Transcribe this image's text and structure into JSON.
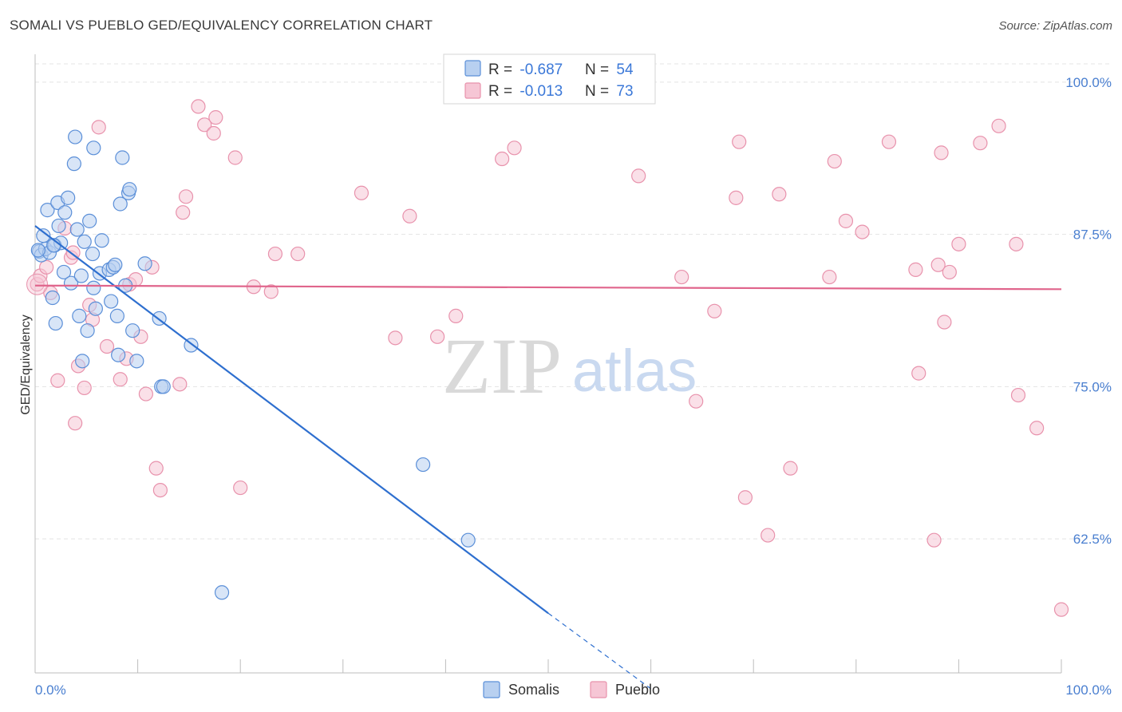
{
  "title": "SOMALI VS PUEBLO GED/EQUIVALENCY CORRELATION CHART",
  "source": "Source: ZipAtlas.com",
  "watermark": {
    "zip": "ZIP",
    "atlas": "atlas"
  },
  "colors": {
    "somali": "#5b8fd8",
    "somali_fill": "#b8d0f0",
    "somali_line": "#2e6fcf",
    "pueblo": "#e892ac",
    "pueblo_fill": "#f6c6d5",
    "pueblo_line": "#e0658c"
  },
  "legend": {
    "rows": [
      {
        "r_label": "R = ",
        "r_value": "-0.687",
        "n_label": "N = ",
        "n_value": "54"
      },
      {
        "r_label": "R = ",
        "r_value": "-0.013",
        "n_label": "N = ",
        "n_value": "73"
      }
    ],
    "bottom": [
      "Somalis",
      "Pueblo"
    ]
  },
  "chart_data": {
    "type": "scatter",
    "title": "SOMALI VS PUEBLO GED/EQUIVALENCY CORRELATION CHART",
    "xlabel": "",
    "ylabel": "GED/Equivalency",
    "xlim": [
      0,
      100
    ],
    "ylim": [
      51.5,
      101.5
    ],
    "x_tick_labels": [
      "0.0%",
      "100.0%"
    ],
    "y_ticks": [
      100,
      87.5,
      75,
      62.5
    ],
    "y_tick_labels": [
      "100.0%",
      "87.5%",
      "75.0%",
      "62.5%"
    ],
    "grid": "horizontal dashed",
    "legend_position": "top-center",
    "series": [
      {
        "name": "Somalis",
        "points": [
          [
            0.4,
            86.1
          ],
          [
            0.6,
            85.8
          ],
          [
            0.8,
            87.4
          ],
          [
            1.0,
            86.3
          ],
          [
            1.2,
            89.5
          ],
          [
            1.4,
            86.0
          ],
          [
            1.7,
            82.3
          ],
          [
            1.9,
            86.6
          ],
          [
            2.0,
            80.2
          ],
          [
            2.2,
            90.1
          ],
          [
            2.3,
            88.2
          ],
          [
            2.5,
            86.8
          ],
          [
            2.8,
            84.4
          ],
          [
            2.9,
            89.3
          ],
          [
            3.2,
            90.5
          ],
          [
            3.5,
            83.5
          ],
          [
            3.8,
            93.3
          ],
          [
            3.9,
            95.5
          ],
          [
            4.1,
            87.9
          ],
          [
            4.3,
            80.8
          ],
          [
            4.5,
            84.1
          ],
          [
            4.6,
            77.1
          ],
          [
            4.8,
            86.9
          ],
          [
            5.1,
            79.6
          ],
          [
            5.3,
            88.6
          ],
          [
            5.6,
            85.9
          ],
          [
            5.7,
            83.1
          ],
          [
            5.9,
            81.4
          ],
          [
            5.7,
            94.6
          ],
          [
            6.3,
            84.3
          ],
          [
            6.5,
            87.0
          ],
          [
            7.2,
            84.6
          ],
          [
            7.4,
            82.0
          ],
          [
            7.6,
            84.8
          ],
          [
            7.8,
            85.0
          ],
          [
            8.0,
            80.8
          ],
          [
            8.1,
            77.6
          ],
          [
            8.3,
            90.0
          ],
          [
            8.5,
            93.8
          ],
          [
            8.8,
            83.3
          ],
          [
            9.1,
            90.9
          ],
          [
            9.2,
            91.2
          ],
          [
            9.5,
            79.6
          ],
          [
            9.9,
            77.1
          ],
          [
            10.7,
            85.1
          ],
          [
            12.1,
            80.6
          ],
          [
            12.3,
            75.0
          ],
          [
            12.5,
            75.0
          ],
          [
            15.2,
            78.4
          ],
          [
            18.2,
            58.1
          ],
          [
            37.8,
            68.6
          ],
          [
            42.2,
            62.4
          ],
          [
            0.3,
            86.2
          ],
          [
            1.8,
            86.6
          ]
        ]
      },
      {
        "name": "Pueblo",
        "points": [
          [
            0.2,
            83.4
          ],
          [
            0.5,
            84.1
          ],
          [
            1.1,
            84.8
          ],
          [
            1.5,
            82.7
          ],
          [
            2.2,
            75.5
          ],
          [
            2.9,
            88.0
          ],
          [
            3.5,
            85.6
          ],
          [
            3.7,
            86.0
          ],
          [
            3.9,
            72.0
          ],
          [
            4.2,
            76.7
          ],
          [
            4.8,
            74.9
          ],
          [
            5.3,
            81.7
          ],
          [
            5.6,
            80.5
          ],
          [
            6.2,
            96.3
          ],
          [
            7.0,
            78.3
          ],
          [
            8.3,
            75.6
          ],
          [
            8.9,
            77.3
          ],
          [
            9.2,
            83.4
          ],
          [
            9.8,
            83.8
          ],
          [
            10.3,
            79.1
          ],
          [
            10.8,
            74.4
          ],
          [
            11.4,
            84.8
          ],
          [
            11.8,
            68.3
          ],
          [
            12.2,
            66.5
          ],
          [
            14.1,
            75.2
          ],
          [
            14.4,
            89.3
          ],
          [
            14.7,
            90.6
          ],
          [
            15.9,
            98.0
          ],
          [
            16.5,
            96.5
          ],
          [
            17.4,
            95.8
          ],
          [
            17.6,
            97.1
          ],
          [
            19.5,
            93.8
          ],
          [
            20.0,
            66.7
          ],
          [
            21.3,
            83.2
          ],
          [
            23.0,
            82.8
          ],
          [
            23.4,
            85.9
          ],
          [
            25.6,
            85.9
          ],
          [
            31.8,
            90.9
          ],
          [
            35.1,
            79.0
          ],
          [
            36.5,
            89.0
          ],
          [
            39.2,
            79.1
          ],
          [
            41.0,
            80.8
          ],
          [
            45.5,
            93.7
          ],
          [
            46.7,
            94.6
          ],
          [
            58.8,
            92.3
          ],
          [
            63.0,
            84.0
          ],
          [
            64.4,
            73.8
          ],
          [
            66.2,
            81.2
          ],
          [
            68.3,
            90.5
          ],
          [
            68.6,
            95.1
          ],
          [
            69.2,
            65.9
          ],
          [
            71.4,
            62.8
          ],
          [
            72.5,
            90.8
          ],
          [
            73.6,
            68.3
          ],
          [
            77.4,
            84.0
          ],
          [
            77.9,
            93.5
          ],
          [
            79.0,
            88.6
          ],
          [
            80.6,
            87.7
          ],
          [
            83.2,
            95.1
          ],
          [
            85.8,
            84.6
          ],
          [
            86.1,
            76.1
          ],
          [
            87.6,
            62.4
          ],
          [
            88.0,
            85.0
          ],
          [
            88.3,
            94.2
          ],
          [
            88.6,
            80.3
          ],
          [
            89.1,
            84.4
          ],
          [
            90.0,
            86.7
          ],
          [
            92.1,
            95.0
          ],
          [
            93.9,
            96.4
          ],
          [
            95.6,
            86.7
          ],
          [
            95.8,
            74.3
          ],
          [
            97.6,
            71.6
          ],
          [
            100.0,
            56.7
          ]
        ]
      }
    ],
    "trend_lines": [
      {
        "series": "Somalis",
        "start": [
          0,
          88.2
        ],
        "end_solid": [
          50.0,
          56.4
        ],
        "end_dashed": [
          60.0,
          50.2
        ]
      },
      {
        "series": "Pueblo",
        "start": [
          0,
          83.3
        ],
        "end": [
          100,
          83.0
        ]
      }
    ]
  }
}
